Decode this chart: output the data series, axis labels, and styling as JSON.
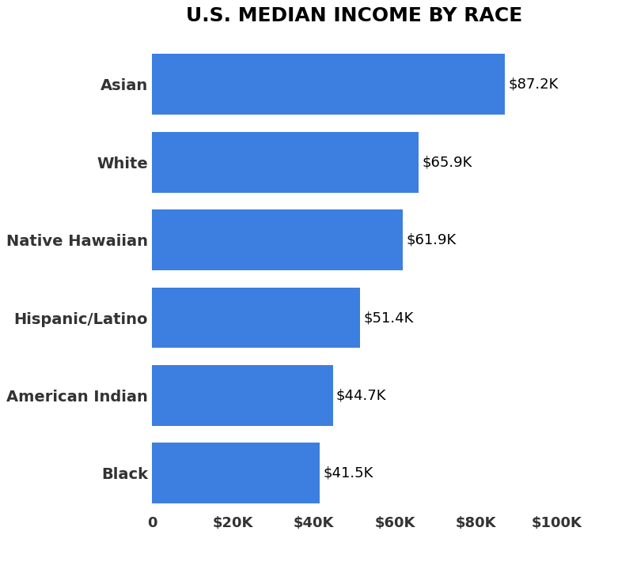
{
  "title": "U.S. MEDIAN INCOME BY RACE",
  "categories": [
    "Asian",
    "White",
    "Native Hawaiian",
    "Hispanic/Latino",
    "American Indian",
    "Black"
  ],
  "values": [
    87200,
    65900,
    61900,
    51400,
    44700,
    41500
  ],
  "labels": [
    "$87.2K",
    "$65.9K",
    "$61.9K",
    "$51.4K",
    "$44.7K",
    "$41.5K"
  ],
  "bar_color": "#3d7fe0",
  "background_color": "#ffffff",
  "xlim": [
    0,
    100000
  ],
  "xtick_values": [
    0,
    20000,
    40000,
    60000,
    80000,
    100000
  ],
  "xtick_labels": [
    "0",
    "$20K",
    "$40K",
    "$60K",
    "$80K",
    "$100K"
  ],
  "title_fontsize": 18,
  "ylabel_fontsize": 14,
  "label_fontsize": 13,
  "tick_fontsize": 13,
  "bar_height": 0.78
}
